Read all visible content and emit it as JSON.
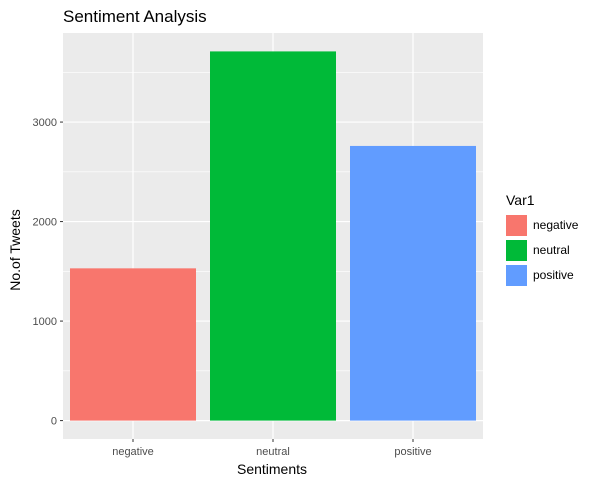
{
  "chart_data": {
    "type": "bar",
    "title": "Sentiment Analysis",
    "xlabel": "Sentiments",
    "ylabel": "No.of Tweets",
    "categories": [
      "negative",
      "neutral",
      "positive"
    ],
    "values": [
      1530,
      3710,
      2760
    ],
    "colors": [
      "#F8766D",
      "#00BA38",
      "#619CFF"
    ],
    "ylim": [
      -185,
      3895
    ],
    "yticks": [
      0,
      1000,
      2000,
      3000
    ],
    "ytick_labels": [
      "0",
      "1000",
      "2000",
      "3000"
    ],
    "grid": true,
    "legend": {
      "title": "Var1",
      "position": "right",
      "entries": [
        "negative",
        "neutral",
        "positive"
      ]
    }
  }
}
